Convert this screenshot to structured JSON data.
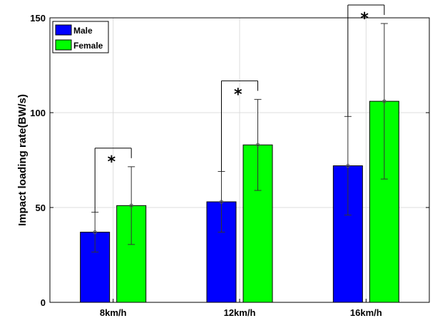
{
  "chart_data": {
    "type": "bar",
    "title": "",
    "xlabel": "",
    "ylabel": "Impact loading rate(BW/s)",
    "ylim": [
      0,
      150
    ],
    "yticks": [
      0,
      50,
      100,
      150
    ],
    "grid": true,
    "legend": "top-left",
    "categories": [
      "8km/h",
      "12km/h",
      "16km/h"
    ],
    "series": [
      {
        "name": "Male",
        "color": "#0000ff",
        "values": [
          37,
          53,
          72
        ],
        "errors": [
          10.5,
          16,
          26
        ]
      },
      {
        "name": "Female",
        "color": "#00ff00",
        "values": [
          51,
          83,
          106
        ],
        "errors": [
          20.5,
          24,
          41
        ]
      }
    ],
    "annotations": [
      {
        "text": "*",
        "category": "8km/h"
      },
      {
        "text": "*",
        "category": "12km/h"
      },
      {
        "text": "*",
        "category": "16km/h"
      }
    ]
  }
}
